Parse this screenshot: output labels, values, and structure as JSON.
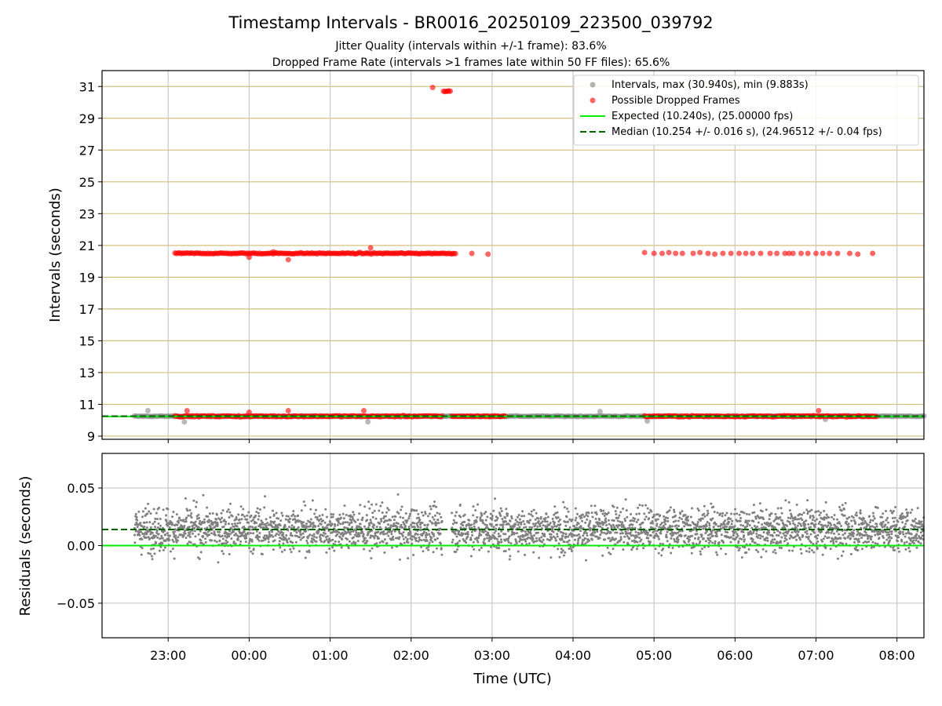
{
  "figure": {
    "title": "Timestamp Intervals - BR0016_20250109_223500_039792",
    "subtitle_1": "Jitter Quality (intervals within +/-1 frame): 83.6%",
    "subtitle_2": "Dropped Frame Rate (intervals >1 frames late within 50 FF files): 65.6%"
  },
  "colors": {
    "intervals": "#808080",
    "dropped": "#ff0000",
    "expected": "#00ee00",
    "median": "#006400",
    "top_grid": "#d4bf7a",
    "grid": "#c8c8c8"
  },
  "chart_data": [
    {
      "type": "scatter",
      "x_axis": "time",
      "ylabel": "Intervals (seconds)",
      "xlim": [
        "22:11",
        "08:20"
      ],
      "ylim": [
        8.8,
        32.0
      ],
      "yticks": [
        9,
        11,
        13,
        15,
        17,
        19,
        21,
        23,
        25,
        27,
        29,
        31
      ],
      "ytick_labels": [
        "9",
        "11",
        "13",
        "15",
        "17",
        "19",
        "21",
        "23",
        "25",
        "27",
        "29",
        "31"
      ],
      "xticks": [
        "23:00",
        "00:00",
        "01:00",
        "02:00",
        "03:00",
        "04:00",
        "05:00",
        "06:00",
        "07:00",
        "08:00"
      ],
      "grid": true,
      "legend_position": "top-right",
      "legend": [
        {
          "label": "Intervals, max (30.940s), min (9.883s)",
          "kind": "marker",
          "color": "#808080"
        },
        {
          "label": "Possible Dropped Frames",
          "kind": "marker",
          "color": "#ff0000"
        },
        {
          "label": "Expected (10.240s), (25.00000 fps)",
          "kind": "line",
          "color": "#00ee00"
        },
        {
          "label": "Median (10.254 +/- 0.016 s), (24.96512 +/- 0.04 fps)",
          "kind": "dashed",
          "color": "#006400"
        }
      ],
      "series": [
        {
          "name": "Intervals, max (30.940s), min (9.883s)",
          "segments": [
            {
              "start": "22:35",
              "end": "08:20",
              "baseline": 10.25
            }
          ],
          "outliers": [
            {
              "time": "22:45",
              "value": 10.6
            },
            {
              "time": "23:12",
              "value": 9.9
            },
            {
              "time": "01:28",
              "value": 9.9
            },
            {
              "time": "04:20",
              "value": 10.55
            },
            {
              "time": "04:55",
              "value": 9.95
            },
            {
              "time": "07:07",
              "value": 10.05
            }
          ]
        },
        {
          "name": "Possible Dropped Frames",
          "segments": [
            {
              "start": "23:05",
              "end": "02:33",
              "baseline": 20.5
            },
            {
              "start": "23:05",
              "end": "02:23",
              "baseline": 10.25
            },
            {
              "start": "02:30",
              "end": "03:10",
              "baseline": 10.25
            },
            {
              "start": "04:53",
              "end": "07:45",
              "baseline": 10.25
            }
          ],
          "points": [
            {
              "time": "02:16",
              "value": 30.94
            },
            {
              "time": "02:24",
              "value": 30.7
            },
            {
              "time": "02:25",
              "value": 30.68
            },
            {
              "time": "02:26",
              "value": 30.7
            },
            {
              "time": "02:27",
              "value": 30.7
            },
            {
              "time": "02:28",
              "value": 30.72
            },
            {
              "time": "02:29",
              "value": 30.7
            },
            {
              "time": "02:45",
              "value": 20.5
            },
            {
              "time": "02:57",
              "value": 20.45
            },
            {
              "time": "23:14",
              "value": 10.6
            },
            {
              "time": "00:00",
              "value": 10.5
            },
            {
              "time": "00:29",
              "value": 10.6
            },
            {
              "time": "01:25",
              "value": 10.6
            },
            {
              "time": "07:02",
              "value": 10.6
            },
            {
              "time": "00:00",
              "value": 20.25
            },
            {
              "time": "00:29",
              "value": 20.1
            },
            {
              "time": "01:30",
              "value": 20.85
            },
            {
              "time": "00:18",
              "value": 20.6
            }
          ],
          "sparse": [
            {
              "time": "04:53",
              "value": 20.55
            },
            {
              "time": "05:00",
              "value": 20.5
            },
            {
              "time": "05:06",
              "value": 20.5
            },
            {
              "time": "05:11",
              "value": 20.55
            },
            {
              "time": "05:16",
              "value": 20.5
            },
            {
              "time": "05:21",
              "value": 20.5
            },
            {
              "time": "05:29",
              "value": 20.5
            },
            {
              "time": "05:34",
              "value": 20.55
            },
            {
              "time": "05:40",
              "value": 20.5
            },
            {
              "time": "05:45",
              "value": 20.45
            },
            {
              "time": "05:51",
              "value": 20.5
            },
            {
              "time": "05:57",
              "value": 20.5
            },
            {
              "time": "06:03",
              "value": 20.5
            },
            {
              "time": "06:08",
              "value": 20.5
            },
            {
              "time": "06:13",
              "value": 20.5
            },
            {
              "time": "06:19",
              "value": 20.5
            },
            {
              "time": "06:26",
              "value": 20.5
            },
            {
              "time": "06:31",
              "value": 20.5
            },
            {
              "time": "06:37",
              "value": 20.5
            },
            {
              "time": "06:40",
              "value": 20.5
            },
            {
              "time": "06:43",
              "value": 20.5
            },
            {
              "time": "06:49",
              "value": 20.5
            },
            {
              "time": "06:54",
              "value": 20.5
            },
            {
              "time": "07:00",
              "value": 20.5
            },
            {
              "time": "07:05",
              "value": 20.5
            },
            {
              "time": "07:10",
              "value": 20.5
            },
            {
              "time": "07:16",
              "value": 20.5
            },
            {
              "time": "07:25",
              "value": 20.5
            },
            {
              "time": "07:31",
              "value": 20.45
            },
            {
              "time": "07:42",
              "value": 20.5
            }
          ]
        },
        {
          "name": "Expected (10.240s), (25.00000 fps)",
          "type": "hline",
          "value": 10.24
        },
        {
          "name": "Median (10.254 +/- 0.016 s), (24.96512 +/- 0.04 fps)",
          "type": "hline",
          "value": 10.254
        }
      ]
    },
    {
      "type": "scatter",
      "x_axis": "time",
      "xlabel": "Time (UTC)",
      "ylabel": "Residuals (seconds)",
      "xlim": [
        "22:11",
        "08:20"
      ],
      "ylim": [
        -0.08,
        0.08
      ],
      "yticks": [
        -0.05,
        0.0,
        0.05
      ],
      "ytick_labels": [
        "−0.05",
        "0.00",
        "0.05"
      ],
      "xticks": [
        "23:00",
        "00:00",
        "01:00",
        "02:00",
        "03:00",
        "04:00",
        "05:00",
        "06:00",
        "07:00",
        "08:00"
      ],
      "grid": true,
      "series": [
        {
          "name": "residuals",
          "segments": [
            {
              "start": "22:35",
              "end": "02:23",
              "center": 0.014,
              "spread": 0.02
            },
            {
              "start": "02:30",
              "end": "08:20",
              "center": 0.014,
              "spread": 0.02
            }
          ]
        },
        {
          "name": "expected",
          "type": "hline",
          "value": 0.0
        },
        {
          "name": "median",
          "type": "hline",
          "value": 0.014
        }
      ]
    }
  ]
}
